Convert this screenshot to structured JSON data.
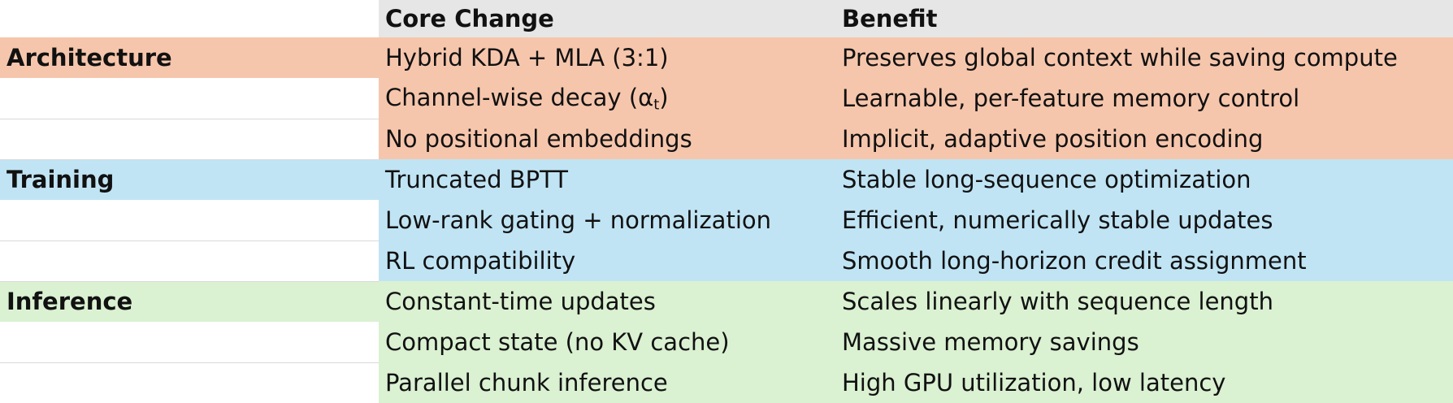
{
  "table": {
    "headers": [
      "",
      "Core Change",
      "Benefit"
    ],
    "rows": [
      {
        "category": "Architecture",
        "change": "Hybrid KDA + MLA (3:1)",
        "benefit": "Preserves global context while saving compute",
        "color": "#f6c6ac"
      },
      {
        "category": "",
        "change": "Channel-wise decay (α",
        "change_sub": "t",
        "change_suffix": ")",
        "benefit": "Learnable, per-feature memory control",
        "color": "#f6c6ac"
      },
      {
        "category": "",
        "change": "No positional embeddings",
        "benefit": "Implicit, adaptive position encoding",
        "color": "#f6c6ac"
      },
      {
        "category": "Training",
        "change": "Truncated BPTT",
        "benefit": "Stable long-sequence optimization",
        "color": "#c0e4f4"
      },
      {
        "category": "",
        "change": "Low-rank gating + normalization",
        "benefit": "Efficient, numerically stable updates",
        "color": "#c0e4f4"
      },
      {
        "category": "",
        "change": "RL compatibility",
        "benefit": "Smooth long-horizon credit assignment",
        "color": "#c0e4f4"
      },
      {
        "category": "Inference",
        "change": "Constant-time updates",
        "benefit": "Scales linearly with sequence length",
        "color": "#daf1d2"
      },
      {
        "category": "",
        "change": "Compact state (no KV cache)",
        "benefit": "Massive memory savings",
        "color": "#daf1d2"
      },
      {
        "category": "",
        "change": "Parallel chunk inference",
        "benefit": "High GPU utilization, low latency",
        "color": "#daf1d2"
      }
    ]
  }
}
